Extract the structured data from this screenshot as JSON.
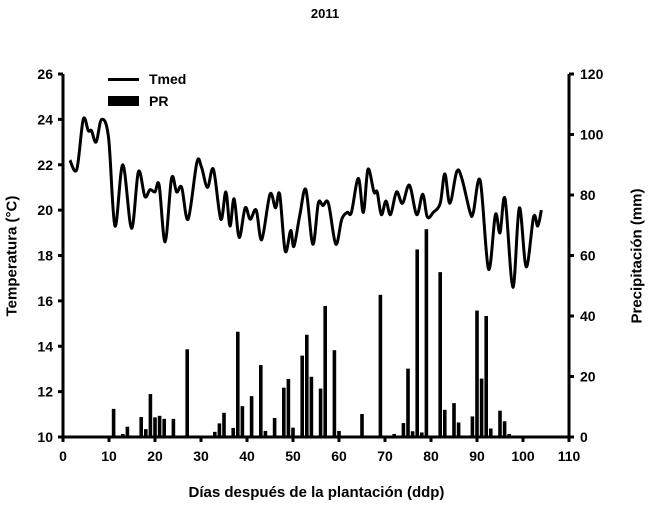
{
  "chart_data": {
    "type": "line+bar",
    "title": "2011",
    "xlabel": "Días después de la plantación (ddp)",
    "ylabel_left": "Temperatura (°C)",
    "ylabel_right": "Precipitación (mm)",
    "xlim": [
      0,
      110
    ],
    "xticks": [
      0,
      10,
      20,
      30,
      40,
      50,
      60,
      70,
      80,
      90,
      100,
      110
    ],
    "ylim_left": [
      10,
      26
    ],
    "yticks_left": [
      10,
      12,
      14,
      16,
      18,
      20,
      22,
      24,
      26
    ],
    "ylim_right": [
      0,
      120
    ],
    "yticks_right": [
      0,
      20,
      40,
      60,
      80,
      100,
      120
    ],
    "grid": false,
    "legend": [
      {
        "name": "Tmed",
        "type": "line"
      },
      {
        "name": "PR",
        "type": "bar"
      }
    ],
    "series": [
      {
        "name": "Tmed",
        "axis": "left",
        "type": "line",
        "x": [
          1.5,
          3,
          4.4,
          5.5,
          6.2,
          7.2,
          8.4,
          9.9,
          11.3,
          13,
          14.9,
          16.4,
          17.8,
          18.9,
          20,
          20.9,
          22.2,
          23.6,
          24.7,
          25.8,
          27.2,
          29.1,
          30.1,
          31.4,
          32.7,
          34.3,
          35.4,
          36.3,
          37.2,
          38.3,
          39.6,
          40.7,
          42,
          43.2,
          45,
          46.2,
          47.1,
          48.3,
          49.5,
          50.2,
          51.5,
          52.8,
          54.3,
          55.5,
          56.5,
          57.7,
          59.3,
          60.6,
          61.8,
          62.7,
          64.2,
          65.3,
          66.3,
          67.6,
          68.3,
          69.2,
          70.2,
          71.2,
          72.5,
          73.8,
          75.3,
          76.9,
          78.2,
          79.2,
          80.5,
          82,
          83,
          84.1,
          85.6,
          86.7,
          88.5,
          89.2,
          90.7,
          92.5,
          94,
          95,
          96.1,
          97.8,
          99.2,
          100.7,
          102.3,
          103.2,
          104
        ],
        "values": [
          22.2,
          21.8,
          24.0,
          23.5,
          23.5,
          23.0,
          24.0,
          23.2,
          19.3,
          22.0,
          19.2,
          21.7,
          20.6,
          20.9,
          20.8,
          21.1,
          18.6,
          21.4,
          20.8,
          21.0,
          19.6,
          22.1,
          21.9,
          21.0,
          21.8,
          19.6,
          20.8,
          19.3,
          20.5,
          18.8,
          20.1,
          19.6,
          20.0,
          18.7,
          20.7,
          20.1,
          20.7,
          18.2,
          19.1,
          18.4,
          19.8,
          20.9,
          18.5,
          20.3,
          20.2,
          20.3,
          18.5,
          19.6,
          19.9,
          19.9,
          21.4,
          19.9,
          21.8,
          20.8,
          20.8,
          19.8,
          20.4,
          19.8,
          20.8,
          20.3,
          21.1,
          19.8,
          20.7,
          19.7,
          19.9,
          20.3,
          21.6,
          20.3,
          21.7,
          21.4,
          19.9,
          19.9,
          21.3,
          17.4,
          19.8,
          19.0,
          20.5,
          16.6,
          20.1,
          17.5,
          19.7,
          19.3,
          20.0
        ]
      },
      {
        "name": "PR",
        "axis": "right",
        "type": "bar",
        "x": [
          11,
          13,
          14,
          15,
          17,
          18,
          19,
          20,
          21,
          22,
          24,
          27,
          33,
          34,
          35,
          37,
          38,
          39,
          41,
          43,
          44,
          46,
          48,
          49,
          50,
          52,
          53,
          54,
          56,
          57,
          59,
          60,
          65,
          69,
          72,
          74,
          75,
          76,
          77,
          78,
          79,
          82,
          83,
          85,
          86,
          89,
          90,
          91,
          92,
          93,
          95,
          96,
          97
        ],
        "values": [
          9.3,
          1,
          3.4,
          0.5,
          6.6,
          2.6,
          14.2,
          6.5,
          7,
          6,
          6,
          29,
          1.7,
          4.5,
          8,
          3,
          34.8,
          10.2,
          13.5,
          23.8,
          2,
          6.3,
          16.3,
          19.2,
          3.1,
          26.9,
          33.8,
          19.9,
          16,
          43.3,
          28.7,
          2,
          7.6,
          47,
          1,
          4.6,
          22.6,
          1.9,
          62,
          1.5,
          68.7,
          54.5,
          9,
          11.2,
          4.8,
          6.8,
          41.8,
          19.3,
          40,
          2.8,
          8.7,
          5.2,
          1
        ]
      }
    ]
  },
  "labels": {
    "title": "2011",
    "xlabel": "Días después de la plantación (ddp)",
    "ylabel_left": "Temperatura (°C)",
    "ylabel_right": "Precipitación (mm)",
    "legend_line": "Tmed",
    "legend_bar": "PR"
  },
  "colors": {
    "line": "#000000",
    "bar": "#000000",
    "axis": "#000000"
  }
}
